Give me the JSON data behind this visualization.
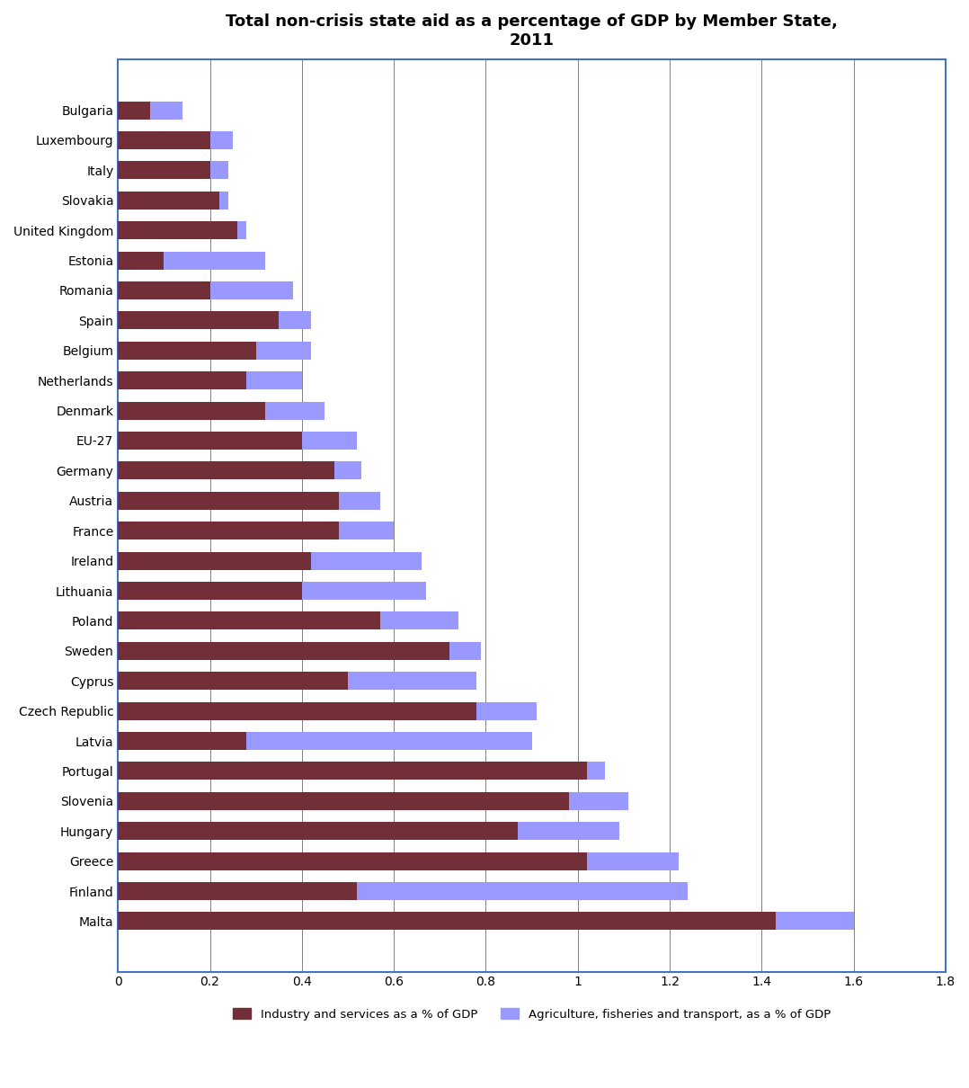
{
  "title": "Total non-crisis state aid as a percentage of GDP by Member State,\n2011",
  "countries": [
    "Malta",
    "Finland",
    "Greece",
    "Hungary",
    "Slovenia",
    "Portugal",
    "Latvia",
    "Czech Republic",
    "Cyprus",
    "Sweden",
    "Poland",
    "Lithuania",
    "Ireland",
    "France",
    "Austria",
    "Germany",
    "EU-27",
    "Denmark",
    "Netherlands",
    "Belgium",
    "Spain",
    "Romania",
    "Estonia",
    "United Kingdom",
    "Slovakia",
    "Italy",
    "Luxembourg",
    "Bulgaria"
  ],
  "industry": [
    1.43,
    0.52,
    1.02,
    0.87,
    0.98,
    1.02,
    0.28,
    0.78,
    0.5,
    0.72,
    0.57,
    0.4,
    0.42,
    0.48,
    0.48,
    0.47,
    0.4,
    0.32,
    0.28,
    0.3,
    0.35,
    0.2,
    0.1,
    0.26,
    0.22,
    0.2,
    0.2,
    0.07
  ],
  "agriculture": [
    0.17,
    0.72,
    0.2,
    0.22,
    0.13,
    0.04,
    0.62,
    0.13,
    0.28,
    0.07,
    0.17,
    0.27,
    0.24,
    0.12,
    0.09,
    0.06,
    0.12,
    0.13,
    0.12,
    0.12,
    0.07,
    0.18,
    0.22,
    0.02,
    0.02,
    0.04,
    0.05,
    0.07
  ],
  "industry_color": "#722F37",
  "agriculture_color": "#9999FF",
  "background_color": "#FFFFFF",
  "xlim": [
    0,
    1.8
  ],
  "xticks": [
    0,
    0.2,
    0.4,
    0.6,
    0.8,
    1.0,
    1.2,
    1.4,
    1.6,
    1.8
  ],
  "xtick_labels": [
    "0",
    "0.2",
    "0.4",
    "0.6",
    "0.8",
    "1",
    "1.2",
    "1.4",
    "1.6",
    "1.8"
  ],
  "legend_industry": "Industry and services as a % of GDP",
  "legend_agriculture": "Agriculture, fisheries and transport, as a % of GDP",
  "title_fontsize": 13,
  "tick_fontsize": 10,
  "label_fontsize": 10,
  "bar_height": 0.6,
  "spine_color": "#4472C4"
}
